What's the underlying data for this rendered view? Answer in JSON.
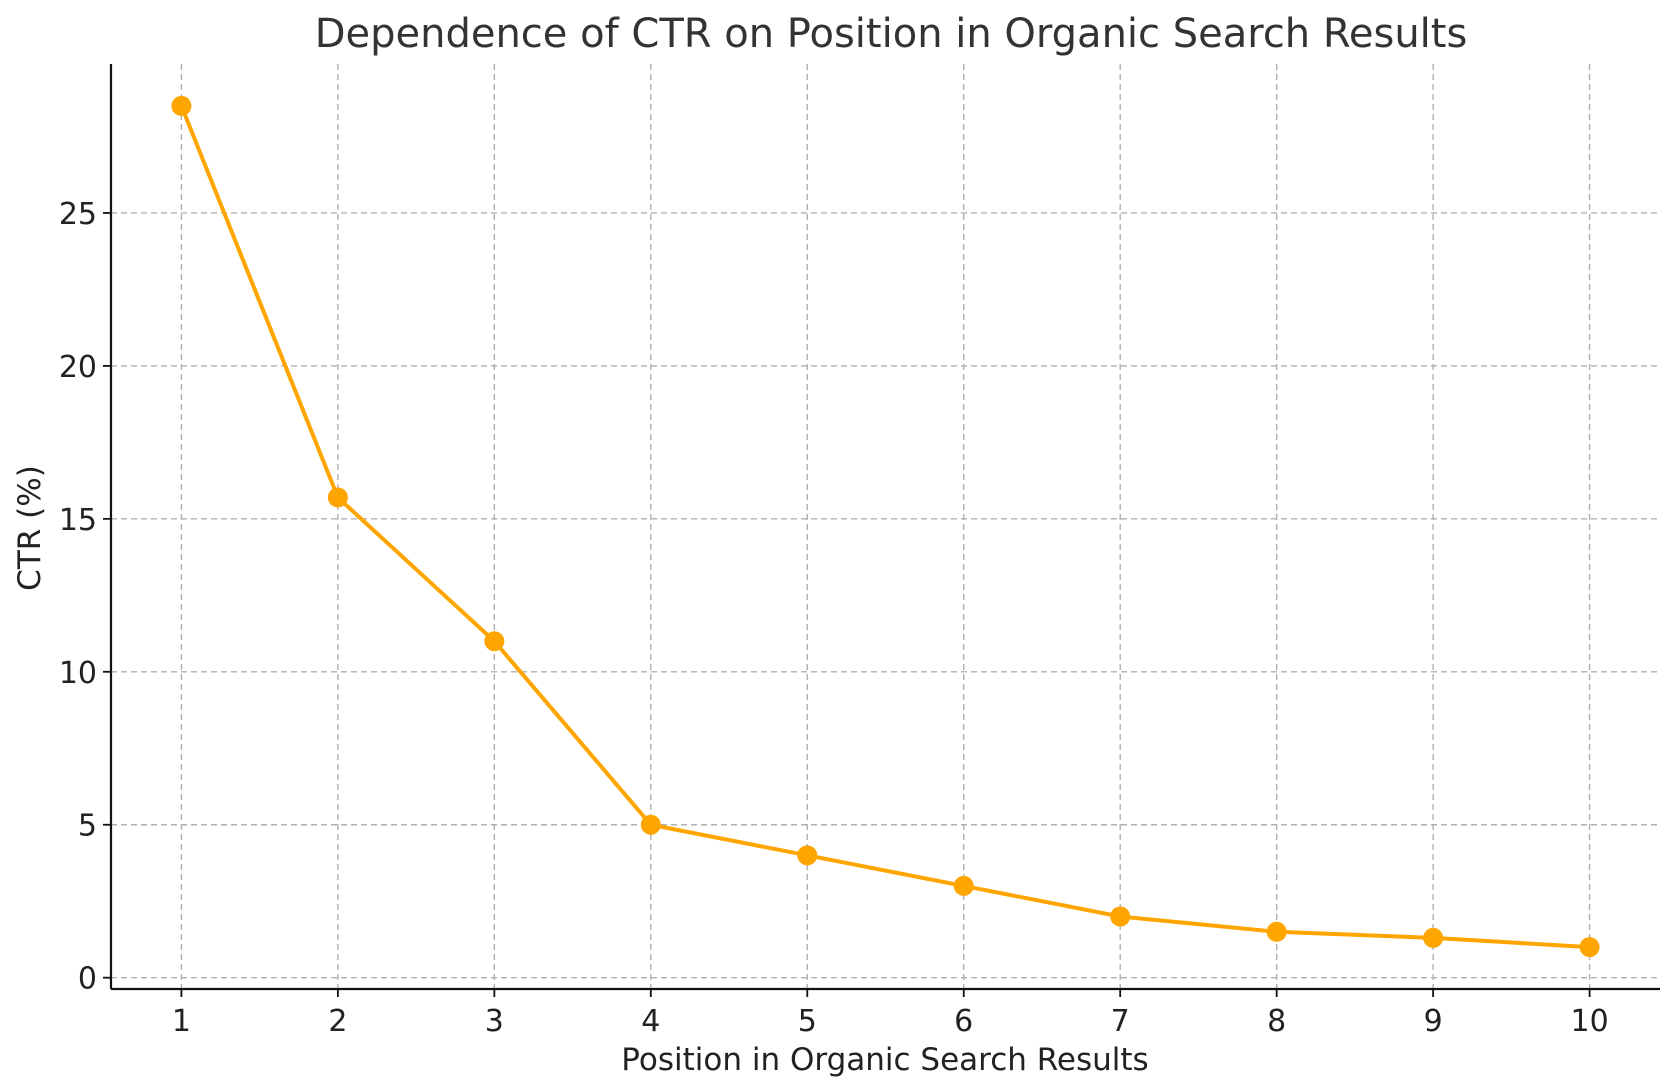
{
  "chart_data": {
    "type": "line",
    "title": "Dependence of CTR on Position in Organic Search Results",
    "xlabel": "Position in Organic Search Results",
    "ylabel": "CTR (%)",
    "x": [
      1,
      2,
      3,
      4,
      5,
      6,
      7,
      8,
      9,
      10
    ],
    "series": [
      {
        "values": [
          28.5,
          15.7,
          11.0,
          5.0,
          4.0,
          3.0,
          2.0,
          1.5,
          1.3,
          1.0
        ],
        "color": "#FFA500"
      }
    ],
    "xticks": [
      "1",
      "2",
      "3",
      "4",
      "5",
      "6",
      "7",
      "8",
      "9",
      "10"
    ],
    "yticks": [
      "0",
      "5",
      "10",
      "15",
      "20",
      "25"
    ],
    "xlim": [
      0.55,
      10.45
    ],
    "ylim": [
      -0.37,
      29.87
    ],
    "grid": true,
    "marker": "circle"
  }
}
